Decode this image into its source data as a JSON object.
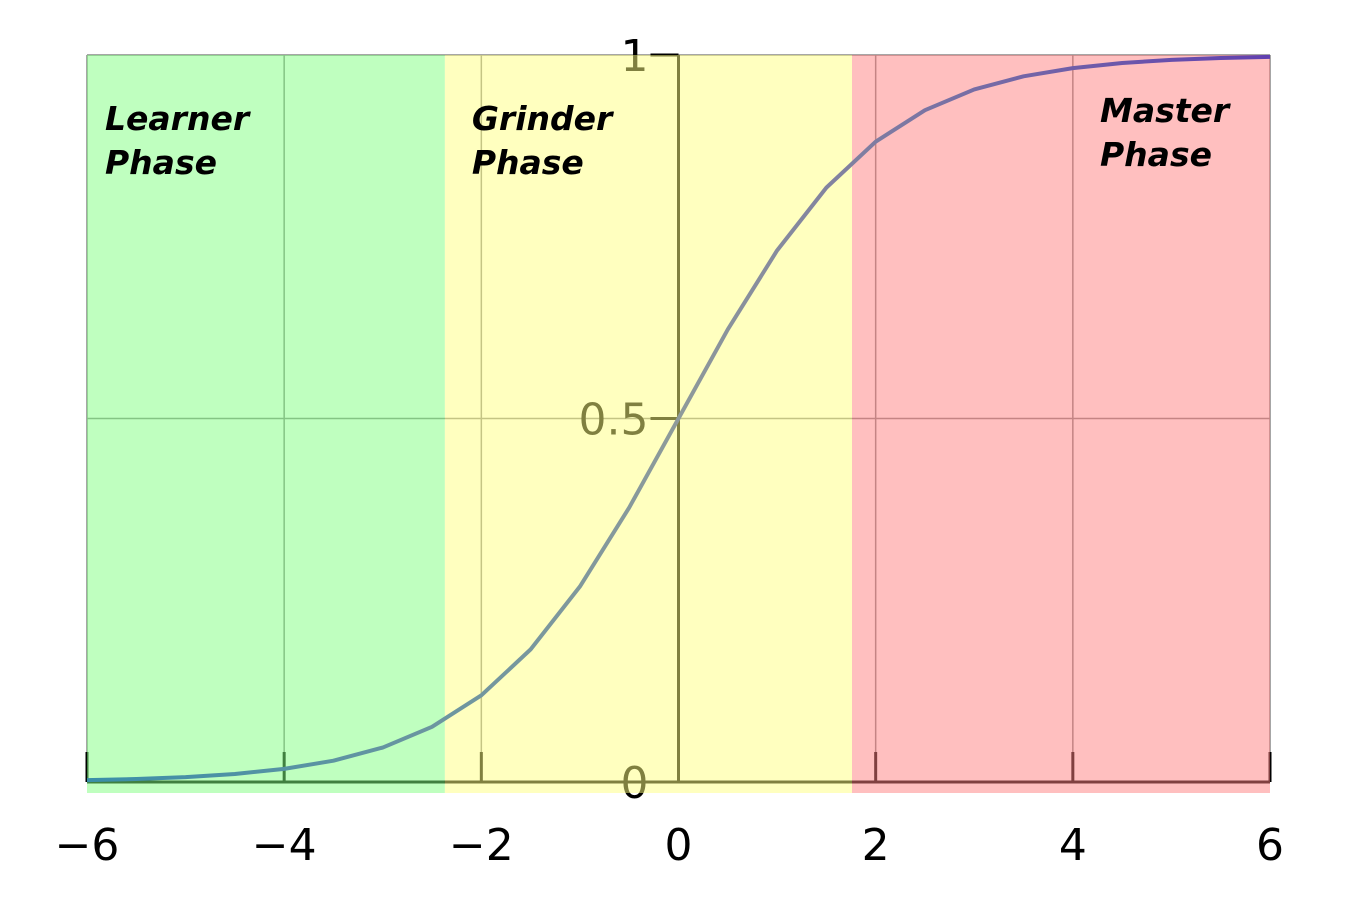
{
  "chart_data": {
    "type": "line",
    "x": [
      -6,
      -5.5,
      -5,
      -4.5,
      -4,
      -3.5,
      -3,
      -2.5,
      -2,
      -1.5,
      -1,
      -0.5,
      0,
      0.5,
      1,
      1.5,
      2,
      2.5,
      3,
      3.5,
      4,
      4.5,
      5,
      5.5,
      6
    ],
    "series": [
      {
        "color": [
          "#3a8fa8",
          "#8e9a9a",
          "#6040b0"
        ],
        "values": [
          0.0025,
          0.0041,
          0.0067,
          0.011,
          0.018,
          0.0293,
          0.0474,
          0.0759,
          0.1192,
          0.1824,
          0.2689,
          0.3775,
          0.5,
          0.6225,
          0.7311,
          0.8176,
          0.8808,
          0.9241,
          0.9526,
          0.9707,
          0.982,
          0.989,
          0.9933,
          0.9959,
          0.9975
        ]
      }
    ],
    "xlim": [
      -6,
      6
    ],
    "ylim": [
      0,
      1
    ],
    "xticks": [
      {
        "value": -6,
        "label": "−6"
      },
      {
        "value": -4,
        "label": "−4"
      },
      {
        "value": -2,
        "label": "−2"
      },
      0,
      2,
      4,
      6
    ],
    "yticks": [
      0,
      0.5,
      1
    ],
    "grid": true,
    "regions": [
      {
        "label": [
          "Learner",
          "Phase"
        ],
        "xspan": [
          -6,
          -2.37
        ],
        "color": "#80ff80"
      },
      {
        "label": [
          "Grinder",
          "Phase"
        ],
        "xspan": [
          -2.37,
          1.76
        ],
        "color": "#ffff80"
      },
      {
        "label": [
          "Master",
          "Phase"
        ],
        "xspan": [
          1.76,
          6
        ],
        "color": "#ff8080"
      }
    ]
  }
}
